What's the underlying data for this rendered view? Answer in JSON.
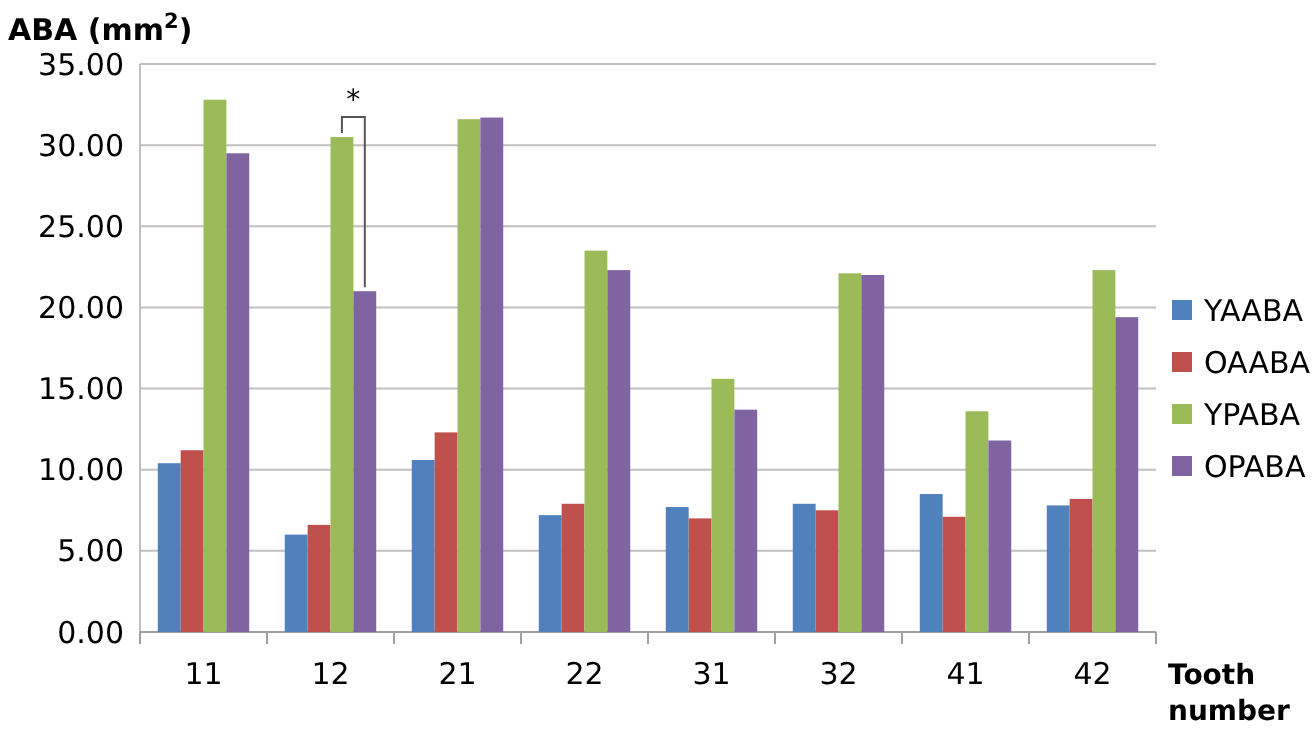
{
  "chart_data": {
    "type": "bar",
    "ylabel": "ABA (mm$^{2}$)",
    "xlabel": "Tooth number",
    "categories": [
      "11",
      "12",
      "21",
      "22",
      "31",
      "32",
      "41",
      "42"
    ],
    "series": [
      {
        "name": "YAABA",
        "color": "#4f81bd",
        "values": [
          10.4,
          6.0,
          10.6,
          7.2,
          7.7,
          7.9,
          8.5,
          7.8
        ]
      },
      {
        "name": "OAABA",
        "color": "#c0504d",
        "values": [
          11.2,
          6.6,
          12.3,
          7.9,
          7.0,
          7.5,
          7.1,
          8.2
        ]
      },
      {
        "name": "YPABA",
        "color": "#9bbb59",
        "values": [
          32.8,
          30.5,
          31.6,
          23.5,
          15.6,
          22.1,
          13.6,
          22.3
        ]
      },
      {
        "name": "OPABA",
        "color": "#8064a2",
        "values": [
          29.5,
          21.0,
          31.7,
          22.3,
          13.7,
          22.0,
          11.8,
          19.4
        ]
      }
    ],
    "ylim": [
      0,
      35
    ],
    "yticks": [
      {
        "value": 0,
        "label": "0.00"
      },
      {
        "value": 5,
        "label": "5.00"
      },
      {
        "value": 10,
        "label": "10.00"
      },
      {
        "value": 15,
        "label": "15.00"
      },
      {
        "value": 20,
        "label": "20.00"
      },
      {
        "value": 25,
        "label": "25.00"
      },
      {
        "value": 30,
        "label": "30.00"
      },
      {
        "value": 35,
        "label": "35.00"
      }
    ],
    "grid": "y",
    "legend": "right",
    "annotations": [
      {
        "text": "*",
        "x": "12",
        "y": 30.5
      }
    ]
  }
}
